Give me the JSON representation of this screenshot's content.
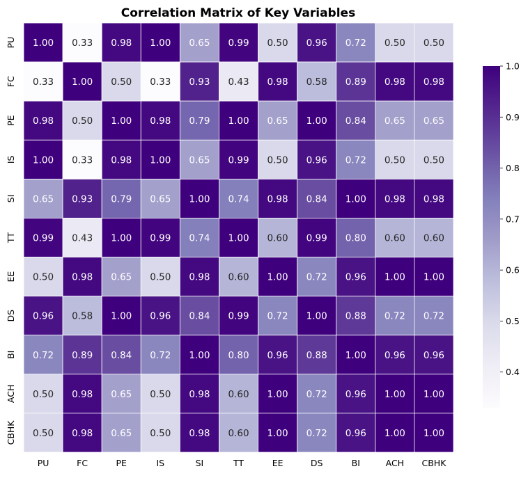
{
  "chart_data": {
    "type": "heatmap",
    "title": "Correlation Matrix of Key Variables",
    "xlabel": "",
    "ylabel": "",
    "x_labels": [
      "PU",
      "FC",
      "PE",
      "IS",
      "SI",
      "TT",
      "EE",
      "DS",
      "BI",
      "ACH",
      "CBHK"
    ],
    "y_labels": [
      "PU",
      "FC",
      "PE",
      "IS",
      "SI",
      "TT",
      "EE",
      "DS",
      "BI",
      "ACH",
      "CBHK"
    ],
    "values": [
      [
        1.0,
        0.33,
        0.98,
        1.0,
        0.65,
        0.99,
        0.5,
        0.96,
        0.72,
        0.5,
        0.5
      ],
      [
        0.33,
        1.0,
        0.5,
        0.33,
        0.93,
        0.43,
        0.98,
        0.58,
        0.89,
        0.98,
        0.98
      ],
      [
        0.98,
        0.5,
        1.0,
        0.98,
        0.79,
        1.0,
        0.65,
        1.0,
        0.84,
        0.65,
        0.65
      ],
      [
        1.0,
        0.33,
        0.98,
        1.0,
        0.65,
        0.99,
        0.5,
        0.96,
        0.72,
        0.5,
        0.5
      ],
      [
        0.65,
        0.93,
        0.79,
        0.65,
        1.0,
        0.74,
        0.98,
        0.84,
        1.0,
        0.98,
        0.98
      ],
      [
        0.99,
        0.43,
        1.0,
        0.99,
        0.74,
        1.0,
        0.6,
        0.99,
        0.8,
        0.6,
        0.6
      ],
      [
        0.5,
        0.98,
        0.65,
        0.5,
        0.98,
        0.6,
        1.0,
        0.72,
        0.96,
        1.0,
        1.0
      ],
      [
        0.96,
        0.58,
        1.0,
        0.96,
        0.84,
        0.99,
        0.72,
        1.0,
        0.88,
        0.72,
        0.72
      ],
      [
        0.72,
        0.89,
        0.84,
        0.72,
        1.0,
        0.8,
        0.96,
        0.88,
        1.0,
        0.96,
        0.96
      ],
      [
        0.5,
        0.98,
        0.65,
        0.5,
        0.98,
        0.6,
        1.0,
        0.72,
        0.96,
        1.0,
        1.0
      ],
      [
        0.5,
        0.98,
        0.65,
        0.5,
        0.98,
        0.6,
        1.0,
        0.72,
        0.96,
        1.0,
        1.0
      ]
    ],
    "colormap": "Purples",
    "vmin": 0.33,
    "vmax": 1.0,
    "colorbar_ticks": [
      "0.4",
      "0.5",
      "0.6",
      "0.7",
      "0.8",
      "0.9",
      "1.0"
    ],
    "colorbar_placement": "right",
    "annotations_format": "0.00"
  }
}
